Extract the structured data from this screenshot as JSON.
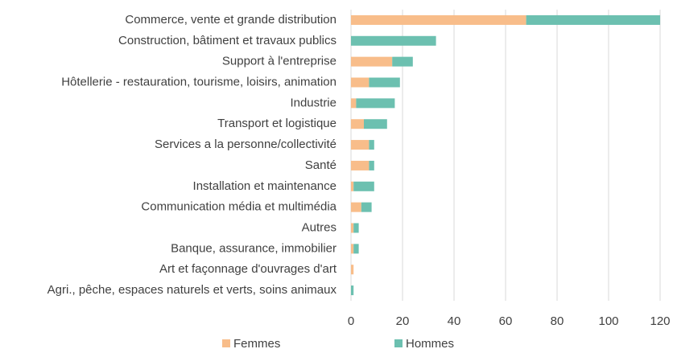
{
  "chart_data": {
    "type": "bar",
    "orientation": "horizontal",
    "stacked": true,
    "categories": [
      "Commerce, vente et grande distribution",
      "Construction, bâtiment et travaux publics",
      "Support à l'entreprise",
      "Hôtellerie - restauration, tourisme, loisirs, animation",
      "Industrie",
      "Transport et logistique ",
      "Services a la personne/collectivité",
      "Santé",
      "Installation et maintenance",
      "Communication média et multimédia",
      "Autres",
      "Banque, assurance, immobilier",
      "Art et façonnage d'ouvrages d'art",
      "Agri., pêche, espaces naturels et verts, soins animaux"
    ],
    "series": [
      {
        "name": "Femmes",
        "color": "#f8bd8a",
        "values": [
          68,
          0,
          16,
          7,
          2,
          5,
          7,
          7,
          1,
          4,
          1,
          1,
          1,
          0
        ]
      },
      {
        "name": "Hommes",
        "color": "#6cc0b0",
        "values": [
          52,
          33,
          8,
          12,
          15,
          9,
          2,
          2,
          8,
          4,
          2,
          2,
          0,
          1
        ]
      }
    ],
    "xlim": [
      0,
      120
    ],
    "xticks": [
      0,
      20,
      40,
      60,
      80,
      100,
      120
    ],
    "grid": true,
    "legend": "bottom"
  }
}
